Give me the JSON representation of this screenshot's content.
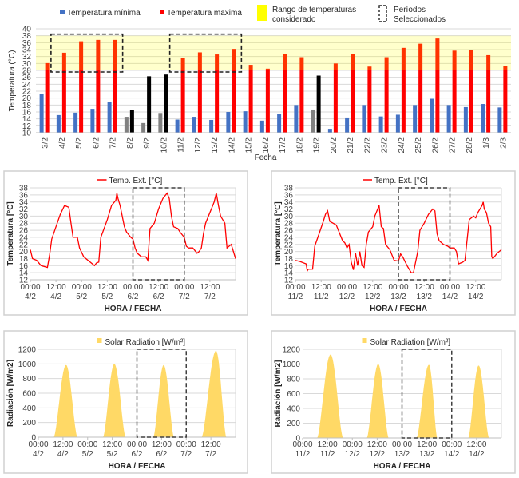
{
  "chart_data": [
    {
      "type": "bar",
      "xlabel": "Fecha",
      "ylabel": "Temperatura (°C)",
      "ylim": [
        10,
        40
      ],
      "yticks": [
        10,
        12,
        14,
        16,
        18,
        20,
        22,
        24,
        26,
        28,
        30,
        32,
        34,
        36,
        38,
        40
      ],
      "grid": true,
      "legend_placement": "top",
      "categories": [
        "3/2",
        "4/2",
        "5/2",
        "6/2",
        "7/2",
        "8/2",
        "9/2",
        "10/2",
        "11/2",
        "12/2",
        "13/2",
        "14/2",
        "15/2",
        "16/2",
        "17/2",
        "18/2",
        "19/2",
        "20/2",
        "21/2",
        "22/2",
        "23/2",
        "24/2",
        "25/2",
        "26/2",
        "27/2",
        "28/2",
        "1/3",
        "2/3"
      ],
      "series": [
        {
          "name": "Temperatura mínima",
          "color": "#4472c4",
          "excluded_color": "#808080",
          "values": [
            21.2,
            15.1,
            15.8,
            16.9,
            19.0,
            14.6,
            12.8,
            15.7,
            13.8,
            14.6,
            13.7,
            16.0,
            16.2,
            13.5,
            15.5,
            18.0,
            16.7,
            10.9,
            14.4,
            18.0,
            14.7,
            15.2,
            18.0,
            19.8,
            18.0,
            17.4,
            18.3,
            17.3
          ]
        },
        {
          "name": "Temperatura maxima",
          "color": "#ff0000",
          "excluded_color": "#000000",
          "values": [
            30.1,
            33.1,
            36.4,
            36.8,
            36.8,
            16.5,
            26.3,
            26.8,
            31.6,
            33.2,
            32.6,
            34.2,
            29.6,
            28.5,
            32.7,
            31.8,
            26.5,
            30.0,
            32.8,
            29.1,
            31.8,
            34.5,
            35.7,
            37.2,
            33.7,
            33.9,
            32.4,
            29.3
          ]
        }
      ],
      "excluded_days": [
        "8/2",
        "9/2",
        "10/2",
        "19/2"
      ],
      "range_band": {
        "name": "Rango de temperaturas considerado",
        "from": 28,
        "to": 38,
        "color": "#ffff00"
      },
      "selected_periods": {
        "name": "Períodos Seleccionados",
        "ranges": [
          [
            "4/2",
            "7/2"
          ],
          [
            "11/2",
            "14/2"
          ]
        ]
      }
    },
    {
      "type": "line",
      "legend": "Temp. Ext. [°C]",
      "color": "#ff0000",
      "xlabel": "HORA / FECHA",
      "ylabel": "Temperatura [°C]",
      "ylim": [
        12,
        38
      ],
      "yticks": [
        12,
        14,
        16,
        18,
        20,
        22,
        24,
        26,
        28,
        30,
        32,
        34,
        36,
        38
      ],
      "xrange": [
        "4/2 00:00",
        "8/2 00:00"
      ],
      "xticks": [
        [
          "00:00",
          "4/2"
        ],
        [
          "12:00",
          "4/2"
        ],
        [
          "00:00",
          "5/2"
        ],
        [
          "12:00",
          "5/2"
        ],
        [
          "00:00",
          "6/2"
        ],
        [
          "12:00",
          "6/2"
        ],
        [
          "00:00",
          "7/2"
        ],
        [
          "12:00",
          "7/2"
        ]
      ],
      "selected_period": [
        "6/2 00:00",
        "7/2 00:00"
      ],
      "points": [
        [
          "4/2 00:00",
          20.5
        ],
        [
          "4/2 01:00",
          18
        ],
        [
          "4/2 03:00",
          17.5
        ],
        [
          "4/2 05:00",
          16
        ],
        [
          "4/2 08:00",
          15.5
        ],
        [
          "4/2 09:00",
          19
        ],
        [
          "4/2 10:00",
          23.5
        ],
        [
          "4/2 12:00",
          27
        ],
        [
          "4/2 14:00",
          30.5
        ],
        [
          "4/2 16:00",
          33
        ],
        [
          "4/2 18:00",
          32.5
        ],
        [
          "4/2 19:00",
          28
        ],
        [
          "4/2 20:00",
          24
        ],
        [
          "4/2 22:00",
          24
        ],
        [
          "4/2 23:00",
          21
        ],
        [
          "5/2 01:00",
          18.5
        ],
        [
          "5/2 04:00",
          17
        ],
        [
          "5/2 06:00",
          16
        ],
        [
          "5/2 07:00",
          16.8
        ],
        [
          "5/2 08:00",
          17
        ],
        [
          "5/2 09:00",
          24
        ],
        [
          "5/2 12:00",
          29
        ],
        [
          "5/2 14:00",
          33
        ],
        [
          "5/2 16:00",
          34.5
        ],
        [
          "5/2 16:30",
          36.5
        ],
        [
          "5/2 17:00",
          35
        ],
        [
          "5/2 18:00",
          33
        ],
        [
          "5/2 20:00",
          27
        ],
        [
          "5/2 21:00",
          25.5
        ],
        [
          "5/2 23:00",
          24
        ],
        [
          "6/2 00:00",
          23.5
        ],
        [
          "6/2 01:00",
          21
        ],
        [
          "6/2 02:00",
          19.5
        ],
        [
          "6/2 04:00",
          18.5
        ],
        [
          "6/2 06:00",
          18.5
        ],
        [
          "6/2 07:00",
          17.5
        ],
        [
          "6/2 08:00",
          26.5
        ],
        [
          "6/2 10:00",
          28
        ],
        [
          "6/2 12:00",
          32
        ],
        [
          "6/2 14:00",
          35
        ],
        [
          "6/2 16:00",
          36.5
        ],
        [
          "6/2 17:00",
          35
        ],
        [
          "6/2 18:00",
          30
        ],
        [
          "6/2 19:00",
          27
        ],
        [
          "6/2 21:00",
          26.5
        ],
        [
          "6/2 22:00",
          25.5
        ],
        [
          "7/2 00:00",
          24
        ],
        [
          "7/2 01:00",
          21.5
        ],
        [
          "7/2 02:00",
          21
        ],
        [
          "7/2 04:00",
          21
        ],
        [
          "7/2 06:00",
          19.5
        ],
        [
          "7/2 07:00",
          20
        ],
        [
          "7/2 08:00",
          21
        ],
        [
          "7/2 09:00",
          25
        ],
        [
          "7/2 10:00",
          28
        ],
        [
          "7/2 13:00",
          32.5
        ],
        [
          "7/2 14:00",
          34
        ],
        [
          "7/2 15:00",
          36.5
        ],
        [
          "7/2 16:00",
          33
        ],
        [
          "7/2 17:00",
          30
        ],
        [
          "7/2 19:00",
          28
        ],
        [
          "7/2 20:00",
          21
        ],
        [
          "7/2 22:00",
          22
        ],
        [
          "7/2 23:00",
          20
        ],
        [
          "7/2 23:59",
          18
        ]
      ]
    },
    {
      "type": "line",
      "legend": "Temp. Ext. [°C]",
      "color": "#ff0000",
      "xlabel": "HORA / FECHA",
      "ylabel": "Temperatura [°C]",
      "ylim": [
        12,
        38
      ],
      "yticks": [
        12,
        14,
        16,
        18,
        20,
        22,
        24,
        26,
        28,
        30,
        32,
        34,
        36,
        38
      ],
      "xrange": [
        "11/2 00:00",
        "15/2 00:00"
      ],
      "xticks": [
        [
          "00:00",
          "11/2"
        ],
        [
          "12:00",
          "11/2"
        ],
        [
          "00:00",
          "12/2"
        ],
        [
          "12:00",
          "12/2"
        ],
        [
          "00:00",
          "13/2"
        ],
        [
          "12:00",
          "13/2"
        ],
        [
          "00:00",
          "14/2"
        ],
        [
          "12:00",
          "14/2"
        ]
      ],
      "selected_period": [
        "13/2 00:00",
        "14/2 00:00"
      ],
      "points": [
        [
          "11/2 00:00",
          17.5
        ],
        [
          "11/2 02:00",
          17.2
        ],
        [
          "11/2 05:00",
          16.5
        ],
        [
          "11/2 05:30",
          14.5
        ],
        [
          "11/2 06:00",
          15
        ],
        [
          "11/2 08:00",
          15
        ],
        [
          "11/2 09:00",
          21.5
        ],
        [
          "11/2 11:00",
          25
        ],
        [
          "11/2 13:00",
          28.5
        ],
        [
          "11/2 14:00",
          30.5
        ],
        [
          "11/2 15:00",
          31.5
        ],
        [
          "11/2 16:00",
          28.5
        ],
        [
          "11/2 19:00",
          27.5
        ],
        [
          "11/2 20:00",
          26
        ],
        [
          "11/2 22:00",
          23
        ],
        [
          "11/2 23:00",
          22.5
        ],
        [
          "12/2 00:00",
          21
        ],
        [
          "12/2 01:00",
          22
        ],
        [
          "12/2 02:00",
          17
        ],
        [
          "12/2 03:00",
          14.8
        ],
        [
          "12/2 04:00",
          19.5
        ],
        [
          "12/2 05:00",
          16
        ],
        [
          "12/2 06:00",
          20
        ],
        [
          "12/2 07:00",
          16
        ],
        [
          "12/2 08:00",
          15.5
        ],
        [
          "12/2 09:00",
          22
        ],
        [
          "12/2 10:00",
          25.5
        ],
        [
          "12/2 12:00",
          27
        ],
        [
          "12/2 13:00",
          30
        ],
        [
          "12/2 15:00",
          33
        ],
        [
          "12/2 16:00",
          27
        ],
        [
          "12/2 17:00",
          26.5
        ],
        [
          "12/2 18:00",
          22
        ],
        [
          "12/2 20:00",
          20.5
        ],
        [
          "12/2 22:00",
          17.5
        ],
        [
          "12/2 23:59",
          17.3
        ],
        [
          "13/2 01:00",
          19.3
        ],
        [
          "13/2 02:00",
          18.5
        ],
        [
          "13/2 04:00",
          16
        ],
        [
          "13/2 06:00",
          14
        ],
        [
          "13/2 07:00",
          14
        ],
        [
          "13/2 08:00",
          17
        ],
        [
          "13/2 09:00",
          20
        ],
        [
          "13/2 10:00",
          26
        ],
        [
          "13/2 12:00",
          28
        ],
        [
          "13/2 14:00",
          30.5
        ],
        [
          "13/2 16:00",
          32
        ],
        [
          "13/2 17:00",
          31.5
        ],
        [
          "13/2 18:00",
          25
        ],
        [
          "13/2 19:00",
          23
        ],
        [
          "13/2 21:00",
          22
        ],
        [
          "13/2 23:00",
          21.5
        ],
        [
          "14/2 00:00",
          21
        ],
        [
          "14/2 02:00",
          21
        ],
        [
          "14/2 03:00",
          20
        ],
        [
          "14/2 04:00",
          16.5
        ],
        [
          "14/2 06:00",
          17
        ],
        [
          "14/2 07:00",
          17.5
        ],
        [
          "14/2 09:00",
          29
        ],
        [
          "14/2 11:00",
          30
        ],
        [
          "14/2 12:00",
          29.5
        ],
        [
          "14/2 13:00",
          31
        ],
        [
          "14/2 15:00",
          33
        ],
        [
          "14/2 15:30",
          34
        ],
        [
          "14/2 16:00",
          32
        ],
        [
          "14/2 17:00",
          31
        ],
        [
          "14/2 18:00",
          28
        ],
        [
          "14/2 19:00",
          27
        ],
        [
          "14/2 19:30",
          18.5
        ],
        [
          "14/2 20:00",
          18
        ],
        [
          "14/2 22:00",
          19.5
        ],
        [
          "14/2 23:59",
          20.5
        ]
      ]
    },
    {
      "type": "area",
      "legend": "Solar Radiation [W/m²]",
      "color": "#ffd966",
      "xlabel": "HORA / FECHA",
      "ylabel": "Radiación [W/m2]",
      "ylim": [
        0,
        1200
      ],
      "yticks": [
        0,
        200,
        400,
        600,
        800,
        1000,
        1200
      ],
      "xrange": [
        "4/2 00:00",
        "8/2 00:00"
      ],
      "xticks": [
        [
          "00:00",
          "4/2"
        ],
        [
          "12:00",
          "4/2"
        ],
        [
          "00:00",
          "5/2"
        ],
        [
          "12:00",
          "5/2"
        ],
        [
          "00:00",
          "6/2"
        ],
        [
          "12:00",
          "6/2"
        ],
        [
          "00:00",
          "7/2"
        ],
        [
          "12:00",
          "7/2"
        ]
      ],
      "selected_period": [
        "6/2 00:00",
        "7/2 00:00"
      ],
      "days": [
        {
          "sunrise": "4/2 07:30",
          "peak_time": "4/2 13:30",
          "peak": 985,
          "sunset": "4/2 19:00"
        },
        {
          "sunrise": "5/2 07:30",
          "peak_time": "5/2 13:00",
          "peak": 1000,
          "sunset": "5/2 18:30"
        },
        {
          "sunrise": "6/2 08:00",
          "peak_time": "6/2 13:00",
          "peak": 985,
          "sunset": "6/2 18:00"
        },
        {
          "sunrise": "7/2 07:30",
          "peak_time": "7/2 14:30",
          "peak": 1180,
          "sunset": "7/2 19:30"
        }
      ]
    },
    {
      "type": "area",
      "legend": "Solar Radiation [W/m²]",
      "color": "#ffd966",
      "xlabel": "HORA / FECHA",
      "ylabel": "Radiación [W/m2]",
      "ylim": [
        0,
        1200
      ],
      "yticks": [
        0,
        200,
        400,
        600,
        800,
        1000,
        1200
      ],
      "xrange": [
        "11/2 00:00",
        "15/2 00:00"
      ],
      "xticks": [
        [
          "00:00",
          "11/2"
        ],
        [
          "12:00",
          "11/2"
        ],
        [
          "00:00",
          "12/2"
        ],
        [
          "12:00",
          "12/2"
        ],
        [
          "00:00",
          "13/2"
        ],
        [
          "12:00",
          "13/2"
        ],
        [
          "00:00",
          "14/2"
        ],
        [
          "12:00",
          "14/2"
        ]
      ],
      "selected_period": [
        "13/2 00:00",
        "14/2 00:00"
      ],
      "days": [
        {
          "sunrise": "11/2 07:00",
          "peak_time": "11/2 13:30",
          "peak": 1130,
          "sunset": "11/2 19:30"
        },
        {
          "sunrise": "12/2 07:00",
          "peak_time": "12/2 12:30",
          "peak": 1000,
          "sunset": "12/2 17:30"
        },
        {
          "sunrise": "13/2 07:00",
          "peak_time": "13/2 13:00",
          "peak": 990,
          "sunset": "13/2 17:00"
        },
        {
          "sunrise": "14/2 08:00",
          "peak_time": "14/2 13:00",
          "peak": 980,
          "sunset": "14/2 18:00"
        }
      ]
    }
  ]
}
